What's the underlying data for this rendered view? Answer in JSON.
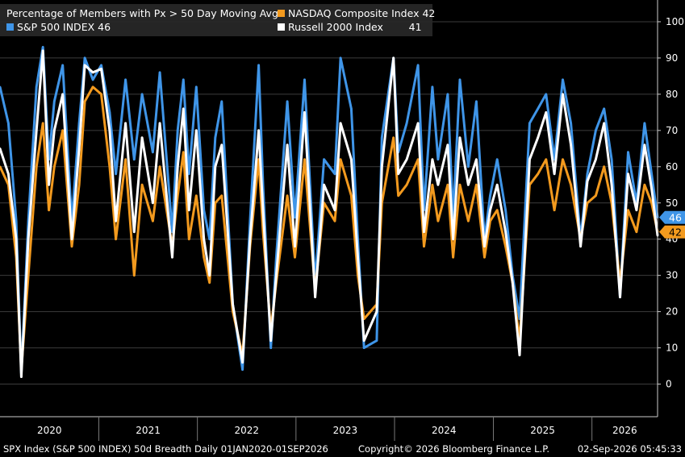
{
  "legend": {
    "title": "Percentage of Members with Px > 50 Day Moving Avg",
    "spx_label": "S&P 500 INDEX 46",
    "ndx_label": "NASDAQ Composite Index 42",
    "rty_label": "Russell 2000 Index        41"
  },
  "footer": {
    "left": "SPX Index (S&P 500 INDEX) 50d Breadth Daily 01JAN2020-01SEP2026",
    "center": "Copyright© 2026 Bloomberg Finance L.P.",
    "right": "02-Sep-2026 05:45:33"
  },
  "colors": {
    "spx": "#3f95e8",
    "ndx": "#f39a1e",
    "rty": "#ffffff",
    "grid": "#3c3c3c",
    "axis": "#cccccc"
  },
  "chart_data": {
    "type": "line",
    "title": "Percentage of Members with Px > 50 Day Moving Avg",
    "ylim": [
      -9,
      106
    ],
    "yticks": [
      0,
      10,
      20,
      30,
      40,
      50,
      60,
      70,
      80,
      90,
      100
    ],
    "x_years": [
      "2020",
      "2021",
      "2022",
      "2023",
      "2024",
      "2025",
      "2026"
    ],
    "xlim": [
      "2020-01-01",
      "2026-09-01"
    ],
    "grid": true,
    "legend_position": "top-left",
    "last_value_labels": [
      {
        "series": "S&P 500 INDEX",
        "value": 46
      },
      {
        "series": "NASDAQ Composite Index",
        "value": 42
      }
    ],
    "series": [
      {
        "name": "S&P 500 INDEX",
        "last": 46,
        "x": [
          "2020-01-01",
          "2020-02-01",
          "2020-03-01",
          "2020-03-20",
          "2020-04-15",
          "2020-05-15",
          "2020-06-08",
          "2020-06-30",
          "2020-07-20",
          "2020-08-20",
          "2020-09-23",
          "2020-10-20",
          "2020-11-10",
          "2020-12-10",
          "2021-01-10",
          "2021-02-10",
          "2021-03-05",
          "2021-04-10",
          "2021-05-12",
          "2021-06-10",
          "2021-07-20",
          "2021-08-15",
          "2021-09-30",
          "2021-10-20",
          "2021-11-10",
          "2021-12-01",
          "2021-12-28",
          "2022-01-25",
          "2022-02-15",
          "2022-03-08",
          "2022-04-01",
          "2022-05-12",
          "2022-06-17",
          "2022-07-15",
          "2022-08-16",
          "2022-09-01",
          "2022-09-30",
          "2022-10-20",
          "2022-11-30",
          "2022-12-28",
          "2023-02-02",
          "2023-03-13",
          "2023-04-15",
          "2023-05-25",
          "2023-06-15",
          "2023-07-25",
          "2023-08-18",
          "2023-09-10",
          "2023-10-27",
          "2023-11-15",
          "2023-12-28",
          "2024-01-15",
          "2024-02-15",
          "2024-03-28",
          "2024-04-19",
          "2024-05-20",
          "2024-06-10",
          "2024-07-16",
          "2024-08-05",
          "2024-08-30",
          "2024-09-30",
          "2024-10-30",
          "2024-11-29",
          "2024-12-20",
          "2025-01-15",
          "2025-02-15",
          "2025-03-13",
          "2025-04-08",
          "2025-05-15",
          "2025-06-15",
          "2025-07-15",
          "2025-08-15",
          "2025-09-15",
          "2025-10-15",
          "2025-11-20",
          "2025-12-15",
          "2026-01-15",
          "2026-02-15",
          "2026-03-15",
          "2026-04-15",
          "2026-05-15",
          "2026-06-15",
          "2026-07-15",
          "2026-08-10",
          "2026-09-01"
        ],
        "values": [
          82,
          72,
          45,
          3,
          45,
          82,
          93,
          62,
          78,
          88,
          45,
          72,
          90,
          84,
          88,
          75,
          58,
          84,
          62,
          80,
          64,
          86,
          42,
          70,
          84,
          58,
          82,
          48,
          40,
          68,
          78,
          22,
          4,
          45,
          88,
          55,
          10,
          35,
          78,
          46,
          84,
          28,
          62,
          58,
          90,
          76,
          40,
          10,
          12,
          68,
          90,
          64,
          72,
          88,
          48,
          82,
          62,
          80,
          46,
          84,
          60,
          78,
          40,
          52,
          62,
          48,
          30,
          18,
          72,
          76,
          80,
          62,
          84,
          72,
          40,
          58,
          70,
          76,
          62,
          24,
          64,
          50,
          72,
          58,
          46
        ]
      },
      {
        "name": "NASDAQ Composite Index",
        "last": 42,
        "x": [
          "2020-01-01",
          "2020-02-01",
          "2020-03-01",
          "2020-03-20",
          "2020-04-15",
          "2020-05-15",
          "2020-06-08",
          "2020-06-30",
          "2020-07-20",
          "2020-08-20",
          "2020-09-23",
          "2020-10-20",
          "2020-11-10",
          "2020-12-10",
          "2021-01-10",
          "2021-02-10",
          "2021-03-05",
          "2021-04-10",
          "2021-05-12",
          "2021-06-10",
          "2021-07-20",
          "2021-08-15",
          "2021-09-30",
          "2021-10-20",
          "2021-11-10",
          "2021-12-01",
          "2021-12-28",
          "2022-01-25",
          "2022-02-15",
          "2022-03-08",
          "2022-04-01",
          "2022-05-12",
          "2022-06-17",
          "2022-07-15",
          "2022-08-16",
          "2022-09-01",
          "2022-09-30",
          "2022-10-20",
          "2022-11-30",
          "2022-12-28",
          "2023-02-02",
          "2023-03-13",
          "2023-04-15",
          "2023-05-25",
          "2023-06-15",
          "2023-07-25",
          "2023-08-18",
          "2023-09-10",
          "2023-10-27",
          "2023-11-15",
          "2023-12-28",
          "2024-01-15",
          "2024-02-15",
          "2024-03-28",
          "2024-04-19",
          "2024-05-20",
          "2024-06-10",
          "2024-07-16",
          "2024-08-05",
          "2024-08-30",
          "2024-09-30",
          "2024-10-30",
          "2024-11-29",
          "2024-12-20",
          "2025-01-15",
          "2025-02-15",
          "2025-03-13",
          "2025-04-08",
          "2025-05-15",
          "2025-06-15",
          "2025-07-15",
          "2025-08-15",
          "2025-09-15",
          "2025-10-15",
          "2025-11-20",
          "2025-12-15",
          "2026-01-15",
          "2026-02-15",
          "2026-03-15",
          "2026-04-15",
          "2026-05-15",
          "2026-06-15",
          "2026-07-15",
          "2026-08-10",
          "2026-09-01"
        ],
        "values": [
          60,
          55,
          35,
          4,
          30,
          60,
          72,
          48,
          60,
          70,
          38,
          55,
          78,
          82,
          80,
          60,
          40,
          62,
          30,
          55,
          45,
          60,
          38,
          52,
          64,
          40,
          52,
          35,
          28,
          50,
          52,
          20,
          8,
          38,
          62,
          42,
          15,
          28,
          52,
          35,
          62,
          26,
          50,
          45,
          62,
          52,
          30,
          18,
          22,
          50,
          68,
          52,
          55,
          62,
          38,
          55,
          45,
          55,
          35,
          55,
          45,
          55,
          35,
          45,
          48,
          38,
          28,
          12,
          55,
          58,
          62,
          48,
          62,
          55,
          40,
          50,
          52,
          60,
          50,
          28,
          48,
          42,
          55,
          50,
          42
        ]
      },
      {
        "name": "Russell 2000 Index",
        "last": 41,
        "x": [
          "2020-01-01",
          "2020-02-01",
          "2020-03-01",
          "2020-03-20",
          "2020-04-15",
          "2020-05-15",
          "2020-06-08",
          "2020-06-30",
          "2020-07-20",
          "2020-08-20",
          "2020-09-23",
          "2020-10-20",
          "2020-11-10",
          "2020-12-10",
          "2021-01-10",
          "2021-02-10",
          "2021-03-05",
          "2021-04-10",
          "2021-05-12",
          "2021-06-10",
          "2021-07-20",
          "2021-08-15",
          "2021-09-30",
          "2021-10-20",
          "2021-11-10",
          "2021-12-01",
          "2021-12-28",
          "2022-01-25",
          "2022-02-15",
          "2022-03-08",
          "2022-04-01",
          "2022-05-12",
          "2022-06-17",
          "2022-07-15",
          "2022-08-16",
          "2022-09-01",
          "2022-09-30",
          "2022-10-20",
          "2022-11-30",
          "2022-12-28",
          "2023-02-02",
          "2023-03-13",
          "2023-04-15",
          "2023-05-25",
          "2023-06-15",
          "2023-07-25",
          "2023-08-18",
          "2023-09-10",
          "2023-10-27",
          "2023-11-15",
          "2023-12-28",
          "2024-01-15",
          "2024-02-15",
          "2024-03-28",
          "2024-04-19",
          "2024-05-20",
          "2024-06-10",
          "2024-07-16",
          "2024-08-05",
          "2024-08-30",
          "2024-09-30",
          "2024-10-30",
          "2024-11-29",
          "2024-12-20",
          "2025-01-15",
          "2025-02-15",
          "2025-03-13",
          "2025-04-08",
          "2025-05-15",
          "2025-06-15",
          "2025-07-15",
          "2025-08-15",
          "2025-09-15",
          "2025-10-15",
          "2025-11-20",
          "2025-12-15",
          "2026-01-15",
          "2026-02-15",
          "2026-03-15",
          "2026-04-15",
          "2026-05-15",
          "2026-06-15",
          "2026-07-15",
          "2026-08-10",
          "2026-09-01"
        ],
        "values": [
          65,
          58,
          40,
          2,
          40,
          70,
          92,
          55,
          70,
          80,
          40,
          65,
          88,
          86,
          87,
          70,
          45,
          72,
          42,
          68,
          50,
          72,
          35,
          60,
          76,
          48,
          70,
          40,
          30,
          60,
          66,
          22,
          6,
          40,
          70,
          48,
          12,
          30,
          66,
          38,
          75,
          24,
          55,
          48,
          72,
          62,
          35,
          12,
          20,
          60,
          90,
          58,
          62,
          72,
          42,
          62,
          55,
          66,
          40,
          68,
          55,
          62,
          38,
          48,
          55,
          42,
          28,
          8,
          62,
          68,
          75,
          58,
          80,
          66,
          38,
          56,
          62,
          72,
          55,
          24,
          58,
          48,
          66,
          54,
          41
        ]
      }
    ]
  }
}
